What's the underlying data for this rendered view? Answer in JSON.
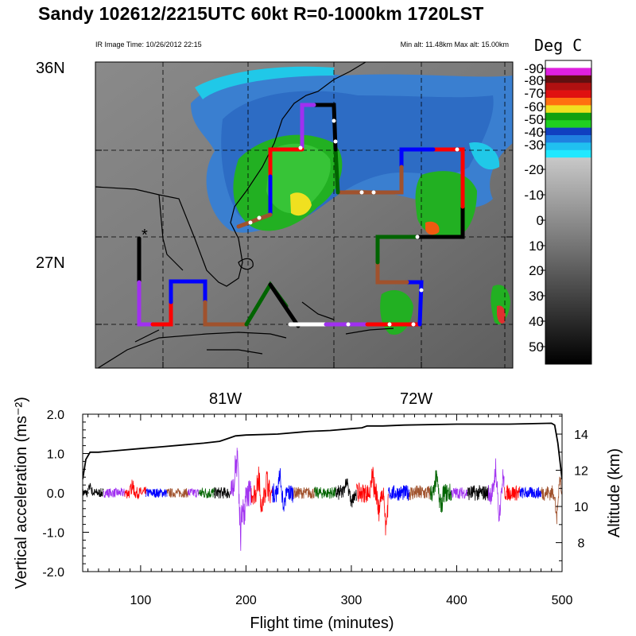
{
  "title": "Sandy 102612/2215UTC 60kt  R=0-1000km 1720LST",
  "ir_image_time": "IR Image Time: 10/26/2012 22:15",
  "altitude_range": "Min alt: 11.48km  Max alt: 15.00km",
  "map": {
    "lat_labels": [
      "36N",
      "27N"
    ],
    "lon_labels": [
      "81W",
      "72W"
    ],
    "colorbar": {
      "title": "Deg C",
      "ticks": [
        "-90",
        "-80",
        "-70",
        "-60",
        "-50",
        "-40",
        "-30",
        "-20",
        "-10",
        "0",
        "10",
        "20",
        "30",
        "40",
        "50"
      ]
    },
    "flight_segment_colors": [
      "#000000",
      "#a030f0",
      "#ff0000",
      "#0000ff",
      "#a0522d",
      "#006400"
    ]
  },
  "chart_data": {
    "type": "line",
    "xlabel": "Flight time (minutes)",
    "ylabel": "Vertical acceleration (ms⁻²)",
    "y2label": "Altitude (km)",
    "xlim": [
      45,
      500
    ],
    "ylim": [
      -2.0,
      2.0
    ],
    "y2lim": [
      6.4,
      15.1
    ],
    "x_ticks": [
      "100",
      "200",
      "300",
      "400",
      "500"
    ],
    "y_ticks": [
      "2.0",
      "1.0",
      "0.0",
      "-1.0",
      "-2.0"
    ],
    "y2_ticks": [
      "8",
      "10",
      "12",
      "14"
    ],
    "altitude_series": {
      "name": "Altitude",
      "x": [
        45,
        48,
        52,
        60,
        80,
        100,
        120,
        140,
        160,
        175,
        185,
        190,
        200,
        230,
        260,
        280,
        300,
        310,
        315,
        330,
        350,
        400,
        450,
        490,
        493,
        496,
        499,
        500
      ],
      "y": [
        11.5,
        12.6,
        13.0,
        13.0,
        13.1,
        13.2,
        13.3,
        13.4,
        13.5,
        13.6,
        13.8,
        13.9,
        13.95,
        14.0,
        14.15,
        14.2,
        14.3,
        14.35,
        14.45,
        14.45,
        14.5,
        14.55,
        14.55,
        14.6,
        14.5,
        13.5,
        12.0,
        11.5
      ]
    },
    "acceleration_segments": [
      {
        "color": "#000000",
        "x": [
          45,
          65
        ],
        "amp": 0.12,
        "peaks": [
          [
            52,
            0.3
          ]
        ]
      },
      {
        "color": "#a030f0",
        "x": [
          65,
          85
        ],
        "amp": 0.12
      },
      {
        "color": "#ff0000",
        "x": [
          85,
          105
        ],
        "amp": 0.15,
        "peaks": [
          [
            92,
            0.35
          ]
        ]
      },
      {
        "color": "#0000ff",
        "x": [
          105,
          125
        ],
        "amp": 0.12
      },
      {
        "color": "#a0522d",
        "x": [
          125,
          145
        ],
        "amp": 0.12
      },
      {
        "color": "#a030f0",
        "x": [
          145,
          155
        ],
        "amp": 0.12
      },
      {
        "color": "#006400",
        "x": [
          155,
          170
        ],
        "amp": 0.15
      },
      {
        "color": "#000000",
        "x": [
          170,
          185
        ],
        "amp": 0.15
      },
      {
        "color": "#a030f0",
        "x": [
          185,
          205
        ],
        "amp": 0.35,
        "peaks": [
          [
            192,
            1.1
          ],
          [
            195,
            -1.2
          ],
          [
            190,
            0.8
          ],
          [
            198,
            -0.9
          ]
        ]
      },
      {
        "color": "#ff0000",
        "x": [
          205,
          225
        ],
        "amp": 0.3,
        "peaks": [
          [
            212,
            0.75
          ],
          [
            215,
            -0.6
          ],
          [
            220,
            0.5
          ]
        ]
      },
      {
        "color": "#0000ff",
        "x": [
          225,
          245
        ],
        "amp": 0.25,
        "peaks": [
          [
            232,
            0.6
          ],
          [
            236,
            -0.5
          ]
        ]
      },
      {
        "color": "#a0522d",
        "x": [
          245,
          265
        ],
        "amp": 0.15
      },
      {
        "color": "#006400",
        "x": [
          265,
          285
        ],
        "amp": 0.15
      },
      {
        "color": "#000000",
        "x": [
          285,
          305
        ],
        "amp": 0.2,
        "peaks": [
          [
            295,
            0.5
          ],
          [
            300,
            -0.4
          ]
        ]
      },
      {
        "color": "#ff0000",
        "x": [
          305,
          335
        ],
        "amp": 0.25,
        "peaks": [
          [
            320,
            0.6
          ],
          [
            333,
            -1.2
          ],
          [
            326,
            -0.7
          ]
        ]
      },
      {
        "color": "#0000ff",
        "x": [
          335,
          355
        ],
        "amp": 0.2
      },
      {
        "color": "#a0522d",
        "x": [
          355,
          375
        ],
        "amp": 0.2
      },
      {
        "color": "#006400",
        "x": [
          375,
          395
        ],
        "amp": 0.25,
        "peaks": [
          [
            381,
            0.6
          ],
          [
            385,
            -0.5
          ]
        ]
      },
      {
        "color": "#a030f0",
        "x": [
          395,
          410
        ],
        "amp": 0.15
      },
      {
        "color": "#000000",
        "x": [
          410,
          430
        ],
        "amp": 0.2
      },
      {
        "color": "#a030f0",
        "x": [
          430,
          445
        ],
        "amp": 0.3,
        "peaks": [
          [
            437,
            0.9
          ],
          [
            440,
            -0.9
          ],
          [
            444,
            0.6
          ]
        ]
      },
      {
        "color": "#ff0000",
        "x": [
          445,
          460
        ],
        "amp": 0.2
      },
      {
        "color": "#0000ff",
        "x": [
          460,
          480
        ],
        "amp": 0.15
      },
      {
        "color": "#a0522d",
        "x": [
          480,
          500
        ],
        "amp": 0.2,
        "peaks": [
          [
            495,
            -1.0
          ],
          [
            498,
            0.5
          ]
        ]
      }
    ]
  }
}
